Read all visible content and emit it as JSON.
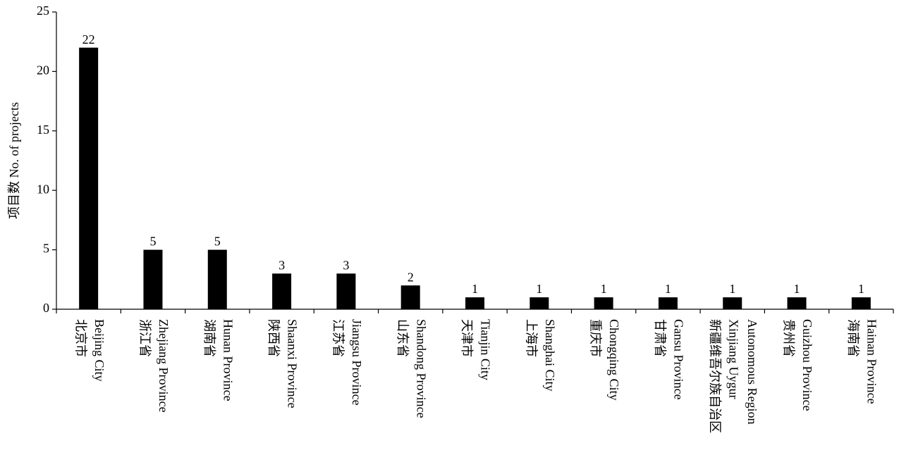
{
  "chart_data": {
    "type": "bar",
    "y_label": "项目数 No. of projects",
    "categories": [
      [
        "北京市",
        "Beijing City"
      ],
      [
        "浙江省",
        "Zhejiang Province"
      ],
      [
        "湖南省",
        "Hunan Province"
      ],
      [
        "陕西省",
        "Shaanxi Province"
      ],
      [
        "江苏省",
        "Jiangsu Province"
      ],
      [
        "山东省",
        "Shandong Province"
      ],
      [
        "天津市",
        "Tianjin City"
      ],
      [
        "上海市",
        "Shanghai City"
      ],
      [
        "重庆市",
        "Chongqing City"
      ],
      [
        "甘肃省",
        "Gansu Province"
      ],
      [
        "新疆维吾尔族自治区",
        "Xinjiang Uygur",
        "Autonomous Region"
      ],
      [
        "贵州省",
        "Guizhou Province"
      ],
      [
        "海南省",
        "Hainan Province"
      ]
    ],
    "values": [
      22,
      5,
      5,
      3,
      3,
      2,
      1,
      1,
      1,
      1,
      1,
      1,
      1
    ],
    "color": "#000000",
    "ylim": [
      0,
      25
    ],
    "yticks": [
      0,
      5,
      10,
      15,
      20,
      25
    ],
    "grid": false
  }
}
